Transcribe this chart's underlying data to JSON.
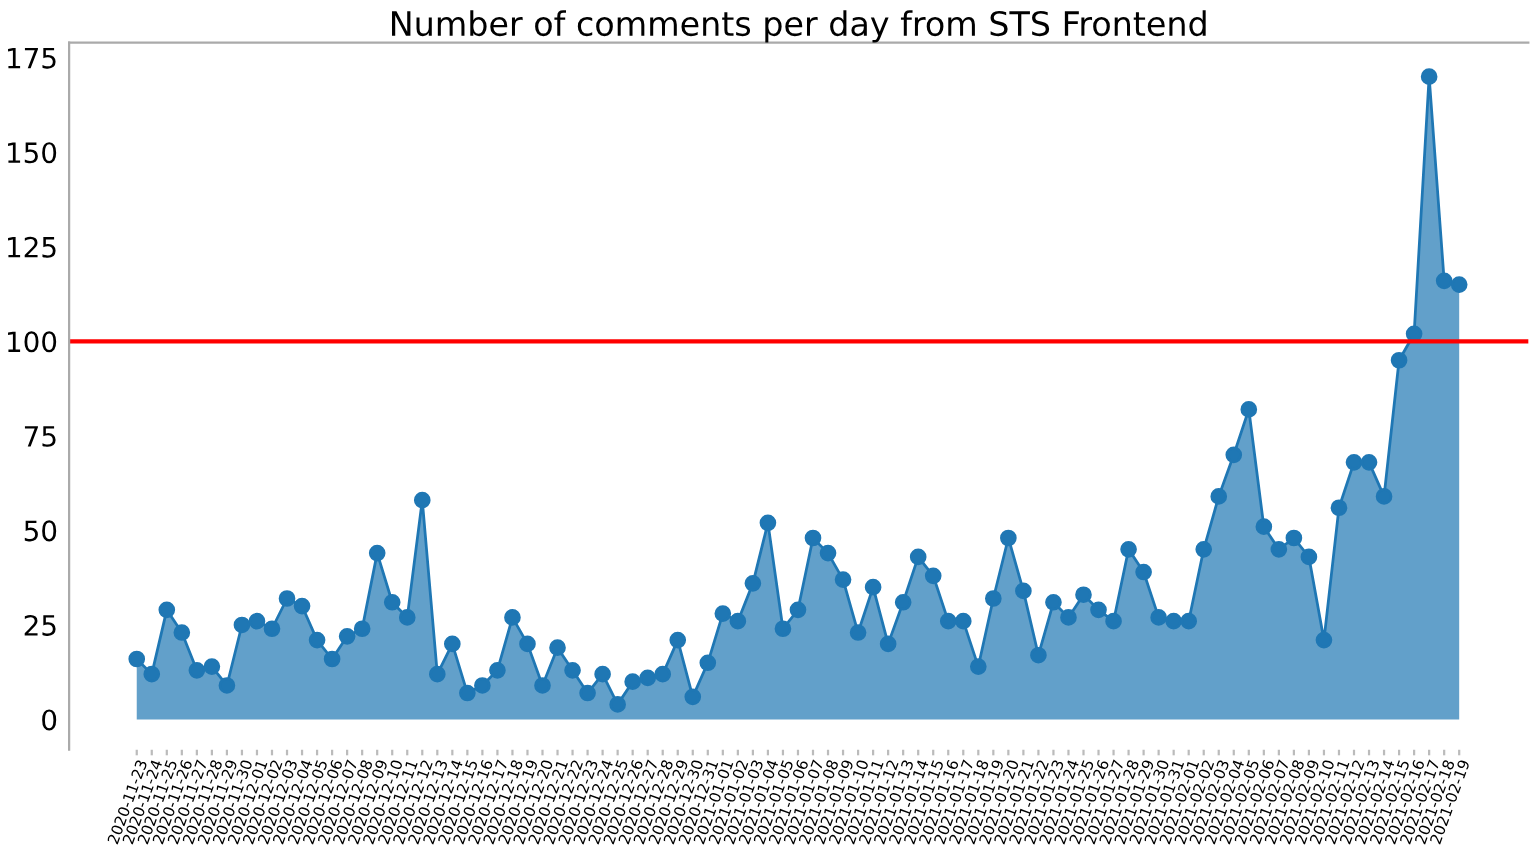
{
  "chart_data": {
    "type": "area",
    "title": "Number of comments per day from STS Frontend",
    "categories": [
      "2020-11-23",
      "2020-11-24",
      "2020-11-25",
      "2020-11-26",
      "2020-11-27",
      "2020-11-28",
      "2020-11-29",
      "2020-11-30",
      "2020-12-01",
      "2020-12-02",
      "2020-12-03",
      "2020-12-04",
      "2020-12-05",
      "2020-12-06",
      "2020-12-07",
      "2020-12-08",
      "2020-12-09",
      "2020-12-10",
      "2020-12-11",
      "2020-12-12",
      "2020-12-13",
      "2020-12-14",
      "2020-12-15",
      "2020-12-16",
      "2020-12-17",
      "2020-12-18",
      "2020-12-19",
      "2020-12-20",
      "2020-12-21",
      "2020-12-22",
      "2020-12-23",
      "2020-12-24",
      "2020-12-25",
      "2020-12-26",
      "2020-12-27",
      "2020-12-28",
      "2020-12-29",
      "2020-12-30",
      "2020-12-31",
      "2021-01-01",
      "2021-01-02",
      "2021-01-03",
      "2021-01-04",
      "2021-01-05",
      "2021-01-06",
      "2021-01-07",
      "2021-01-08",
      "2021-01-09",
      "2021-01-10",
      "2021-01-11",
      "2021-01-12",
      "2021-01-13",
      "2021-01-14",
      "2021-01-15",
      "2021-01-16",
      "2021-01-17",
      "2021-01-18",
      "2021-01-19",
      "2021-01-20",
      "2021-01-21",
      "2021-01-22",
      "2021-01-23",
      "2021-01-24",
      "2021-01-25",
      "2021-01-26",
      "2021-01-27",
      "2021-01-28",
      "2021-01-29",
      "2021-01-30",
      "2021-01-31",
      "2021-02-01",
      "2021-02-02",
      "2021-02-03",
      "2021-02-04",
      "2021-02-05",
      "2021-02-06",
      "2021-02-07",
      "2021-02-08",
      "2021-02-09",
      "2021-02-10",
      "2021-02-11",
      "2021-02-12",
      "2021-02-13",
      "2021-02-14",
      "2021-02-15",
      "2021-02-16",
      "2021-02-17",
      "2021-02-18",
      "2021-02-19"
    ],
    "series": [
      {
        "color": "#1f77b4",
        "values": [
          16,
          12,
          29,
          23,
          13,
          14,
          9,
          25,
          26,
          24,
          32,
          30,
          21,
          16,
          22,
          24,
          44,
          31,
          27,
          58,
          12,
          20,
          7,
          9,
          13,
          27,
          20,
          9,
          19,
          13,
          7,
          12,
          4,
          10,
          11,
          12,
          21,
          6,
          15,
          28,
          26,
          36,
          52,
          24,
          29,
          48,
          44,
          37,
          23,
          35,
          20,
          31,
          43,
          38,
          26,
          26,
          14,
          32,
          48,
          34,
          17,
          31,
          27,
          33,
          29,
          26,
          45,
          39,
          27,
          26,
          26,
          45,
          59,
          70,
          82,
          51,
          45,
          48,
          43,
          21,
          56,
          68,
          68,
          59,
          95,
          102,
          170,
          116,
          115
        ]
      }
    ],
    "marker": "circle",
    "ylim": [
      -8,
      179
    ],
    "yticks": [
      0,
      25,
      50,
      75,
      100,
      125,
      150,
      175
    ],
    "ref_lines": [
      {
        "axis": "y",
        "value": 100,
        "color": "#ff0000"
      }
    ],
    "grid": false
  }
}
